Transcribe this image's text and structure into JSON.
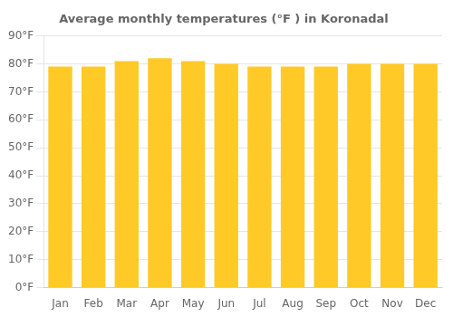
{
  "chart_data": {
    "type": "bar",
    "title": "Average monthly temperatures (°F ) in Koronadal",
    "categories": [
      "Jan",
      "Feb",
      "Mar",
      "Apr",
      "May",
      "Jun",
      "Jul",
      "Aug",
      "Sep",
      "Oct",
      "Nov",
      "Dec"
    ],
    "values": [
      79,
      79,
      81,
      82,
      81,
      80,
      79,
      79,
      79,
      80,
      80,
      80
    ],
    "color": "#FFCA28",
    "ylim": [
      0,
      90
    ],
    "yticks": [
      {
        "value": 0,
        "label": "0°F"
      },
      {
        "value": 10,
        "label": "10°F"
      },
      {
        "value": 20,
        "label": "20°F"
      },
      {
        "value": 30,
        "label": "30°F"
      },
      {
        "value": 40,
        "label": "40°F"
      },
      {
        "value": 50,
        "label": "50°F"
      },
      {
        "value": 60,
        "label": "60°F"
      },
      {
        "value": 70,
        "label": "70°F"
      },
      {
        "value": 80,
        "label": "80°F"
      },
      {
        "value": 90,
        "label": "90°F"
      }
    ],
    "grid": true
  }
}
